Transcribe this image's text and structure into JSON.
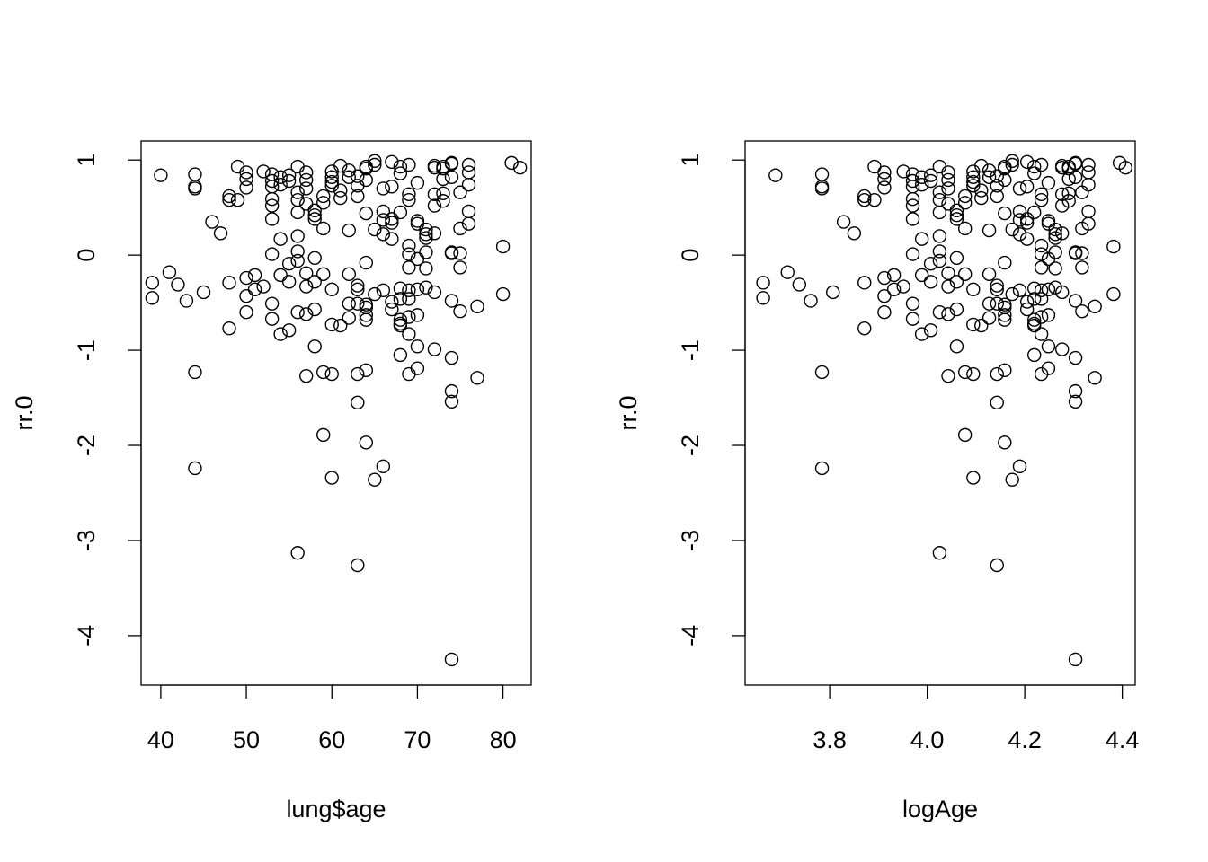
{
  "chart_data": [
    {
      "type": "scatter",
      "xlabel": "lung$age",
      "ylabel": "rr.0",
      "xlim": [
        37.7,
        83.3
      ],
      "ylim": [
        -4.52,
        1.2
      ],
      "xticks": [
        "40",
        "50",
        "60",
        "70",
        "80"
      ],
      "yticks": [
        "-4",
        "-3",
        "-2",
        "-1",
        "0",
        "1"
      ],
      "grid": false,
      "points": [
        [
          40,
          0.84
        ],
        [
          39,
          -0.29
        ],
        [
          39,
          -0.45
        ],
        [
          41,
          -0.18
        ],
        [
          42,
          -0.31
        ],
        [
          43,
          -0.48
        ],
        [
          44,
          0.85
        ],
        [
          44,
          0.72
        ],
        [
          44,
          0.7
        ],
        [
          44,
          -1.23
        ],
        [
          44,
          -2.24
        ],
        [
          45,
          -0.39
        ],
        [
          46,
          0.35
        ],
        [
          47,
          0.23
        ],
        [
          48,
          0.62
        ],
        [
          48,
          0.58
        ],
        [
          48,
          -0.29
        ],
        [
          48,
          -0.77
        ],
        [
          49,
          0.93
        ],
        [
          49,
          0.58
        ],
        [
          50,
          0.87
        ],
        [
          50,
          0.8
        ],
        [
          50,
          0.71
        ],
        [
          50,
          -0.24
        ],
        [
          50,
          -0.43
        ],
        [
          50,
          -0.6
        ],
        [
          51,
          -0.21
        ],
        [
          51,
          -0.36
        ],
        [
          52,
          0.88
        ],
        [
          52,
          -0.33
        ],
        [
          53,
          0.85
        ],
        [
          53,
          0.78
        ],
        [
          53,
          0.72
        ],
        [
          53,
          0.59
        ],
        [
          53,
          0.52
        ],
        [
          53,
          0.38
        ],
        [
          53,
          0.01
        ],
        [
          53,
          -0.51
        ],
        [
          53,
          -0.67
        ],
        [
          54,
          0.82
        ],
        [
          54,
          0.74
        ],
        [
          54,
          0.17
        ],
        [
          54,
          -0.21
        ],
        [
          54,
          -0.83
        ],
        [
          55,
          0.84
        ],
        [
          55,
          0.78
        ],
        [
          55,
          -0.09
        ],
        [
          55,
          -0.28
        ],
        [
          55,
          -0.79
        ],
        [
          56,
          0.93
        ],
        [
          56,
          0.66
        ],
        [
          56,
          0.58
        ],
        [
          56,
          0.45
        ],
        [
          56,
          0.2
        ],
        [
          56,
          0.04
        ],
        [
          56,
          -0.06
        ],
        [
          56,
          -0.6
        ],
        [
          56,
          -3.13
        ],
        [
          57,
          0.87
        ],
        [
          57,
          0.79
        ],
        [
          57,
          0.7
        ],
        [
          57,
          0.54
        ],
        [
          57,
          -0.19
        ],
        [
          57,
          -0.33
        ],
        [
          57,
          -0.62
        ],
        [
          57,
          -1.27
        ],
        [
          58,
          0.47
        ],
        [
          58,
          0.42
        ],
        [
          58,
          0.38
        ],
        [
          58,
          -0.03
        ],
        [
          58,
          -0.28
        ],
        [
          58,
          -0.57
        ],
        [
          58,
          -0.96
        ],
        [
          59,
          0.62
        ],
        [
          59,
          0.55
        ],
        [
          59,
          0.28
        ],
        [
          59,
          -0.2
        ],
        [
          59,
          -1.23
        ],
        [
          59,
          -1.89
        ],
        [
          60,
          0.88
        ],
        [
          60,
          0.82
        ],
        [
          60,
          0.77
        ],
        [
          60,
          0.73
        ],
        [
          60,
          -0.36
        ],
        [
          60,
          -0.73
        ],
        [
          60,
          -1.25
        ],
        [
          60,
          -2.34
        ],
        [
          61,
          0.94
        ],
        [
          61,
          0.68
        ],
        [
          61,
          0.6
        ],
        [
          61,
          -0.74
        ],
        [
          62,
          0.89
        ],
        [
          62,
          0.82
        ],
        [
          62,
          0.26
        ],
        [
          62,
          -0.2
        ],
        [
          62,
          -0.51
        ],
        [
          62,
          -0.66
        ],
        [
          63,
          0.83
        ],
        [
          63,
          0.73
        ],
        [
          63,
          0.62
        ],
        [
          63,
          -0.32
        ],
        [
          63,
          -0.36
        ],
        [
          63,
          -0.51
        ],
        [
          63,
          -1.25
        ],
        [
          63,
          -1.55
        ],
        [
          63,
          -3.26
        ],
        [
          64,
          0.93
        ],
        [
          64,
          0.91
        ],
        [
          64,
          0.79
        ],
        [
          64,
          0.44
        ],
        [
          64,
          -0.08
        ],
        [
          64,
          -0.52
        ],
        [
          64,
          -0.55
        ],
        [
          64,
          -0.63
        ],
        [
          64,
          -0.68
        ],
        [
          64,
          -1.21
        ],
        [
          64,
          -1.97
        ],
        [
          65,
          0.99
        ],
        [
          65,
          0.95
        ],
        [
          65,
          0.27
        ],
        [
          65,
          -0.41
        ],
        [
          65,
          -2.36
        ],
        [
          66,
          0.7
        ],
        [
          66,
          0.46
        ],
        [
          66,
          0.37
        ],
        [
          66,
          0.22
        ],
        [
          66,
          -0.37
        ],
        [
          66,
          -2.22
        ],
        [
          67,
          0.98
        ],
        [
          67,
          0.72
        ],
        [
          67,
          0.38
        ],
        [
          67,
          0.34
        ],
        [
          67,
          0.17
        ],
        [
          67,
          -0.49
        ],
        [
          67,
          -0.57
        ],
        [
          68,
          0.93
        ],
        [
          68,
          0.86
        ],
        [
          68,
          0.45
        ],
        [
          68,
          -0.35
        ],
        [
          68,
          -0.46
        ],
        [
          68,
          -0.68
        ],
        [
          68,
          -0.72
        ],
        [
          68,
          -0.74
        ],
        [
          68,
          -1.05
        ],
        [
          69,
          0.95
        ],
        [
          69,
          0.64
        ],
        [
          69,
          0.58
        ],
        [
          69,
          0.1
        ],
        [
          69,
          0.01
        ],
        [
          69,
          -0.13
        ],
        [
          69,
          -0.37
        ],
        [
          69,
          -0.46
        ],
        [
          69,
          -0.65
        ],
        [
          69,
          -0.83
        ],
        [
          69,
          -1.25
        ],
        [
          70,
          0.76
        ],
        [
          70,
          0.36
        ],
        [
          70,
          0.33
        ],
        [
          70,
          -0.04
        ],
        [
          70,
          -0.36
        ],
        [
          70,
          -0.63
        ],
        [
          70,
          -0.96
        ],
        [
          70,
          -1.19
        ],
        [
          71,
          0.27
        ],
        [
          71,
          0.22
        ],
        [
          71,
          0.18
        ],
        [
          71,
          0.03
        ],
        [
          71,
          -0.14
        ],
        [
          71,
          -0.34
        ],
        [
          72,
          0.94
        ],
        [
          72,
          0.92
        ],
        [
          72,
          0.64
        ],
        [
          72,
          0.52
        ],
        [
          72,
          0.23
        ],
        [
          72,
          -0.39
        ],
        [
          72,
          -0.99
        ],
        [
          73,
          0.93
        ],
        [
          73,
          0.91
        ],
        [
          73,
          0.8
        ],
        [
          73,
          0.65
        ],
        [
          73,
          0.57
        ],
        [
          74,
          0.97
        ],
        [
          74,
          0.96
        ],
        [
          74,
          0.82
        ],
        [
          74,
          0.03
        ],
        [
          74,
          0.02
        ],
        [
          74,
          -0.48
        ],
        [
          74,
          -1.08
        ],
        [
          74,
          -1.43
        ],
        [
          74,
          -1.54
        ],
        [
          74,
          -4.25
        ],
        [
          75,
          0.66
        ],
        [
          75,
          0.28
        ],
        [
          75,
          0.02
        ],
        [
          75,
          -0.13
        ],
        [
          75,
          -0.59
        ],
        [
          76,
          0.95
        ],
        [
          76,
          0.87
        ],
        [
          76,
          0.74
        ],
        [
          76,
          0.46
        ],
        [
          76,
          0.33
        ],
        [
          77,
          -0.54
        ],
        [
          77,
          -1.29
        ],
        [
          80,
          0.09
        ],
        [
          80,
          -0.41
        ],
        [
          81,
          0.97
        ],
        [
          82,
          0.92
        ]
      ]
    },
    {
      "type": "scatter",
      "xlabel": "logAge",
      "ylabel": "rr.0",
      "xlim": [
        3.6265,
        4.4265
      ],
      "ylim": [
        -4.52,
        1.2
      ],
      "xticks": [
        "3.8",
        "4.0",
        "4.2",
        "4.4"
      ],
      "yticks": [
        "-4",
        "-3",
        "-2",
        "-1",
        "0",
        "1"
      ],
      "grid": false,
      "x_transform": "log"
    }
  ]
}
